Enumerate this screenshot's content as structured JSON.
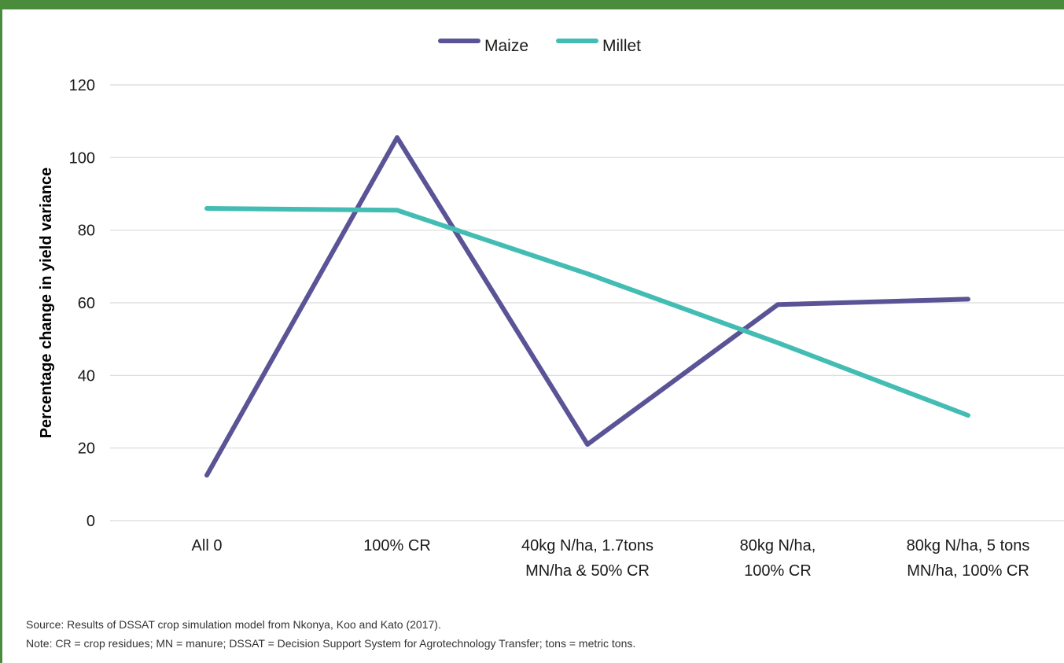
{
  "chart_data": {
    "type": "line",
    "ylabel": "Percentage change in yield variance",
    "xlabel": "",
    "title": "",
    "categories": [
      [
        "All 0"
      ],
      [
        "100% CR"
      ],
      [
        "40kg N/ha, 1.7tons",
        "MN/ha & 50% CR"
      ],
      [
        "80kg N/ha,",
        "100% CR"
      ],
      [
        "80kg N/ha, 5 tons",
        "MN/ha, 100% CR"
      ]
    ],
    "series": [
      {
        "name": "Maize",
        "color": "#5a5496",
        "values": [
          12.5,
          105.5,
          21,
          59.5,
          61
        ]
      },
      {
        "name": "Millet",
        "color": "#43bdb3",
        "values": [
          86,
          85.5,
          68,
          49,
          29
        ]
      }
    ],
    "ylim": [
      0,
      120
    ],
    "yticks": [
      0,
      20,
      40,
      60,
      80,
      100,
      120
    ],
    "grid": true,
    "legend_position": "top-center"
  },
  "notes": {
    "source": "Source: Results of DSSAT crop simulation model from Nkonya, Koo and Kato (2017).",
    "note": "Note: CR = crop residues; MN = manure; DSSAT = Decision Support System for Agrotechnology Transfer; tons = metric tons."
  }
}
